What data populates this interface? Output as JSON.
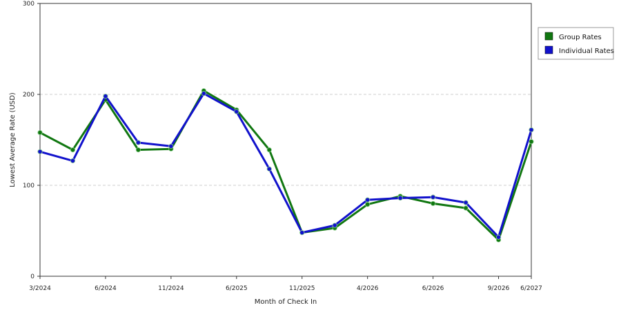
{
  "chart_data": {
    "type": "line",
    "title": "",
    "xlabel": "Month of Check In",
    "ylabel": "Lowest Average Rate (USD)",
    "ylim": [
      0,
      300
    ],
    "yticks": [
      0,
      100,
      200,
      300
    ],
    "grid": true,
    "legend_position": "right",
    "x_tick_labels": [
      "3/2024",
      "6/2024",
      "11/2024",
      "6/2025",
      "11/2025",
      "4/2026",
      "6/2026",
      "9/2026",
      "6/2027"
    ],
    "x_tick_indices": [
      0,
      2,
      4,
      6,
      8,
      10,
      12,
      14,
      15
    ],
    "series": [
      {
        "name": "Group Rates",
        "color": "#117711",
        "values": [
          158,
          139,
          194,
          139,
          140,
          204,
          183,
          139,
          48,
          53,
          79,
          88,
          80,
          75,
          40,
          148
        ]
      },
      {
        "name": "Individual Rates",
        "color": "#1111cc",
        "values": [
          137,
          127,
          198,
          147,
          143,
          201,
          181,
          118,
          48,
          56,
          84,
          86,
          87,
          81,
          43,
          161
        ]
      }
    ]
  }
}
